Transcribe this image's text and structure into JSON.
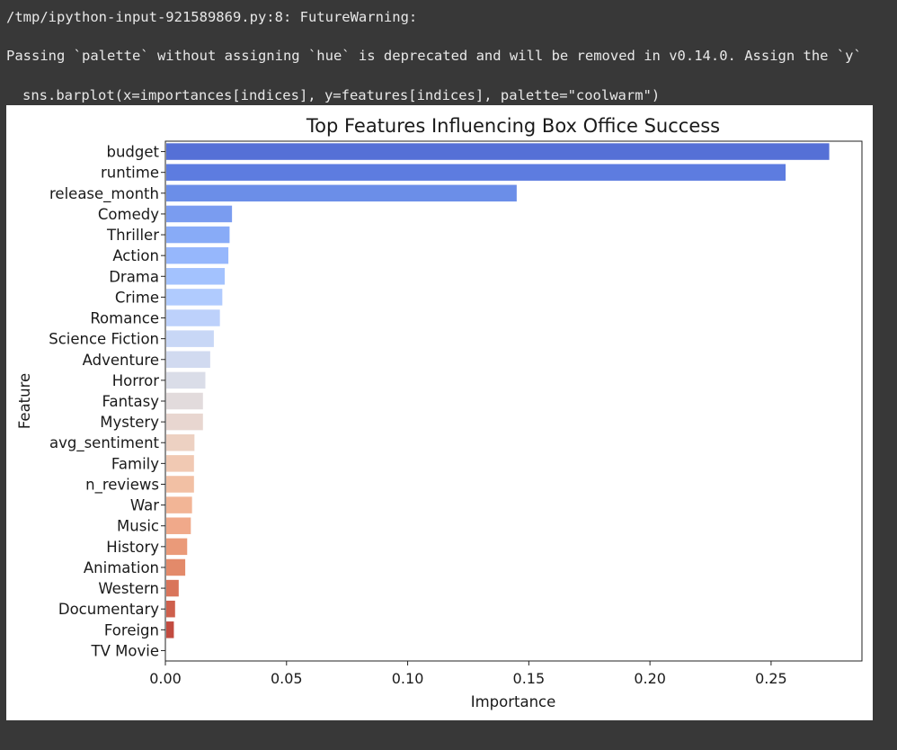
{
  "output": {
    "warning_line1": "/tmp/ipython-input-921589869.py:8: FutureWarning:",
    "warning_line2": "Passing `palette` without assigning `hue` is deprecated and will be removed in v0.14.0. Assign the `y`",
    "warning_line3": "sns.barplot(x=importances[indices], y=features[indices], palette=\"coolwarm\")"
  },
  "chart_data": {
    "type": "bar",
    "orientation": "horizontal",
    "title": "Top Features Influencing Box Office Success",
    "xlabel": "Importance",
    "ylabel": "Feature",
    "xlim": [
      0,
      0.2875
    ],
    "xticks": [
      0.0,
      0.05,
      0.1,
      0.15,
      0.2,
      0.25
    ],
    "xtick_labels": [
      "0.00",
      "0.05",
      "0.10",
      "0.15",
      "0.20",
      "0.25"
    ],
    "grid": false,
    "palette": "coolwarm",
    "categories": [
      "budget",
      "runtime",
      "release_month",
      "Comedy",
      "Thriller",
      "Action",
      "Drama",
      "Crime",
      "Romance",
      "Science Fiction",
      "Adventure",
      "Horror",
      "Fantasy",
      "Mystery",
      "avg_sentiment",
      "Family",
      "n_reviews",
      "War",
      "Music",
      "History",
      "Animation",
      "Western",
      "Documentary",
      "Foreign",
      "TV Movie"
    ],
    "values": [
      0.274,
      0.256,
      0.145,
      0.0275,
      0.0265,
      0.026,
      0.0245,
      0.0235,
      0.0225,
      0.02,
      0.0185,
      0.0165,
      0.0155,
      0.0155,
      0.012,
      0.0118,
      0.0118,
      0.011,
      0.0105,
      0.009,
      0.0082,
      0.0055,
      0.004,
      0.0035,
      0.0
    ],
    "colors": [
      "#5570d6",
      "#5d7ce0",
      "#6b8ee8",
      "#7a9cf0",
      "#88abf7",
      "#96b7fc",
      "#a3c2fe",
      "#b0cbfe",
      "#bdd1fb",
      "#c8d7f6",
      "#d1daf0",
      "#dadde8",
      "#e2dbdc",
      "#e8d6d0",
      "#edd1c2",
      "#f1c9b3",
      "#f2c0a4",
      "#f2b596",
      "#f0a98a",
      "#ea9a79",
      "#e38a6a",
      "#d9755b",
      "#ce604d",
      "#c24b40",
      "#b73a3a"
    ]
  }
}
